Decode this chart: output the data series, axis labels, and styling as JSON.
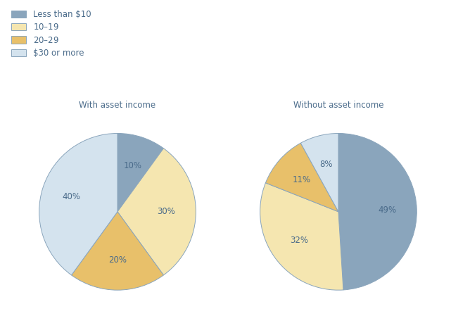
{
  "legend_labels": [
    "Less than $10",
    "$10–$19",
    "$20–$29",
    "$30 or more"
  ],
  "colors": [
    "#8aa5bc",
    "#f5e6b0",
    "#e8c06a",
    "#d4e3ee"
  ],
  "legend_edge_color": "#8aa5bc",
  "pie1_title": "With asset income",
  "pie2_title": "Without asset income",
  "pie1_values": [
    10,
    30,
    20,
    40
  ],
  "pie2_values": [
    49,
    32,
    11,
    8
  ],
  "pie1_labels": [
    "10%",
    "30%",
    "20%",
    "40%"
  ],
  "pie2_labels": [
    "49%",
    "32%",
    "11%",
    "8%"
  ],
  "label_fontsize": 8.5,
  "title_fontsize": 8.5,
  "legend_fontsize": 8.5,
  "text_color": "#4a6b8a",
  "title_color": "#4a6b8a",
  "bg_color": "white",
  "wedge_edge_color": "#8aa5bc",
  "wedge_linewidth": 0.7
}
